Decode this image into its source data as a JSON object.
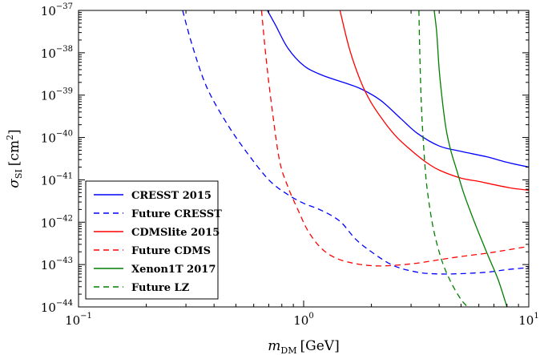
{
  "chart_data": {
    "type": "line",
    "x_scale": "log",
    "y_scale": "log",
    "xlim": [
      0.1,
      10
    ],
    "ylim": [
      1e-44,
      1e-37
    ],
    "grid": false,
    "legend_position": "lower-left",
    "xlabel": {
      "main": "m",
      "sub": "DM",
      "unit": "[GeV]"
    },
    "ylabel": {
      "main": "σ",
      "sub": "SI",
      "unit_open": "[cm",
      "unit_sup": "2",
      "unit_close": "]"
    },
    "x_ticks": [
      {
        "value": 0.1,
        "base": "10",
        "exp": "−1"
      },
      {
        "value": 1,
        "base": "10",
        "exp": "0"
      },
      {
        "value": 10,
        "base": "10",
        "exp": "1"
      }
    ],
    "y_ticks": [
      {
        "value": 1e-44,
        "base": "10",
        "exp": "−44"
      },
      {
        "value": 1e-43,
        "base": "10",
        "exp": "−43"
      },
      {
        "value": 1e-42,
        "base": "10",
        "exp": "−42"
      },
      {
        "value": 1e-41,
        "base": "10",
        "exp": "−41"
      },
      {
        "value": 1e-40,
        "base": "10",
        "exp": "−40"
      },
      {
        "value": 1e-39,
        "base": "10",
        "exp": "−39"
      },
      {
        "value": 1e-38,
        "base": "10",
        "exp": "−38"
      },
      {
        "value": 1e-37,
        "base": "10",
        "exp": "−37"
      }
    ],
    "series": [
      {
        "name": "CRESST 2015",
        "color": "#0000ff",
        "dash": "solid",
        "x": [
          0.69,
          0.75,
          0.85,
          1.0,
          1.2,
          1.5,
          1.8,
          2.2,
          2.7,
          3.2,
          4.0,
          5.0,
          6.5,
          8.0,
          10.0
        ],
        "y": [
          1e-37,
          4.5e-38,
          1.3e-38,
          5e-39,
          3e-39,
          2e-39,
          1.4e-39,
          7.5e-40,
          2.8e-40,
          1.25e-40,
          6.3e-41,
          4.7e-41,
          3.5e-41,
          2.6e-41,
          2e-41
        ]
      },
      {
        "name": "Future CRESST",
        "color": "#0000ff",
        "dash": "dashed",
        "x": [
          0.29,
          0.32,
          0.37,
          0.45,
          0.55,
          0.7,
          0.85,
          1.0,
          1.2,
          1.45,
          1.7,
          2.0,
          2.5,
          3.2,
          4.0,
          5.0,
          6.5,
          8.0,
          10.0
        ],
        "y": [
          1e-37,
          1.5e-38,
          1.6e-39,
          2.4e-40,
          5e-41,
          1e-41,
          4.5e-42,
          2.8e-42,
          1.9e-42,
          1.05e-42,
          4e-43,
          2e-43,
          9.5e-44,
          6.6e-44,
          6e-44,
          6.1e-44,
          6.6e-44,
          7.6e-44,
          8.5e-44
        ]
      },
      {
        "name": "CDMSlite 2015",
        "color": "#ff0000",
        "dash": "solid",
        "x": [
          1.45,
          1.6,
          1.8,
          2.0,
          2.3,
          2.6,
          3.0,
          3.5,
          4.0,
          5.0,
          6.0,
          7.0,
          8.5,
          10.0
        ],
        "y": [
          1e-37,
          1.2e-38,
          2e-39,
          6.5e-40,
          2.2e-40,
          1e-40,
          5e-41,
          2.6e-41,
          1.7e-41,
          1.1e-41,
          9.2e-42,
          7.7e-42,
          6.3e-42,
          5.7e-42
        ]
      },
      {
        "name": "Future CDMS",
        "color": "#ff0000",
        "dash": "dashed",
        "x": [
          0.65,
          0.68,
          0.72,
          0.78,
          0.85,
          0.95,
          1.05,
          1.2,
          1.4,
          1.7,
          2.1,
          2.6,
          3.2,
          4.0,
          5.0,
          6.5,
          8.0,
          10.0
        ],
        "y": [
          1e-37,
          8e-39,
          6e-40,
          3e-41,
          7e-42,
          1.8e-42,
          6e-43,
          2.4e-43,
          1.4e-43,
          1.05e-43,
          9.3e-44,
          9.7e-44,
          1.08e-43,
          1.3e-43,
          1.55e-43,
          1.85e-43,
          2.2e-43,
          2.7e-43
        ]
      },
      {
        "name": "Xenon1T 2017",
        "color": "#007f00",
        "dash": "solid",
        "x": [
          3.8,
          3.9,
          4.0,
          4.15,
          4.3,
          4.5,
          4.8,
          5.1,
          5.5,
          6.0,
          6.6,
          7.3,
          8.0
        ],
        "y": [
          1e-37,
          3e-38,
          4e-39,
          6e-40,
          1.5e-40,
          5e-41,
          1.6e-41,
          5.5e-42,
          1.8e-42,
          5.5e-43,
          1.6e-43,
          4.5e-44,
          1e-44
        ]
      },
      {
        "name": "Future LZ",
        "color": "#007f00",
        "dash": "dashed",
        "x": [
          3.25,
          3.28,
          3.32,
          3.37,
          3.43,
          3.5,
          3.6,
          3.75,
          3.95,
          4.2,
          4.55,
          5.0,
          5.35
        ],
        "y": [
          1e-37,
          1e-38,
          1e-39,
          1.8e-40,
          4e-41,
          1e-41,
          3e-42,
          8e-43,
          2.5e-43,
          9e-44,
          3.5e-44,
          1.5e-44,
          1e-44
        ]
      }
    ]
  }
}
